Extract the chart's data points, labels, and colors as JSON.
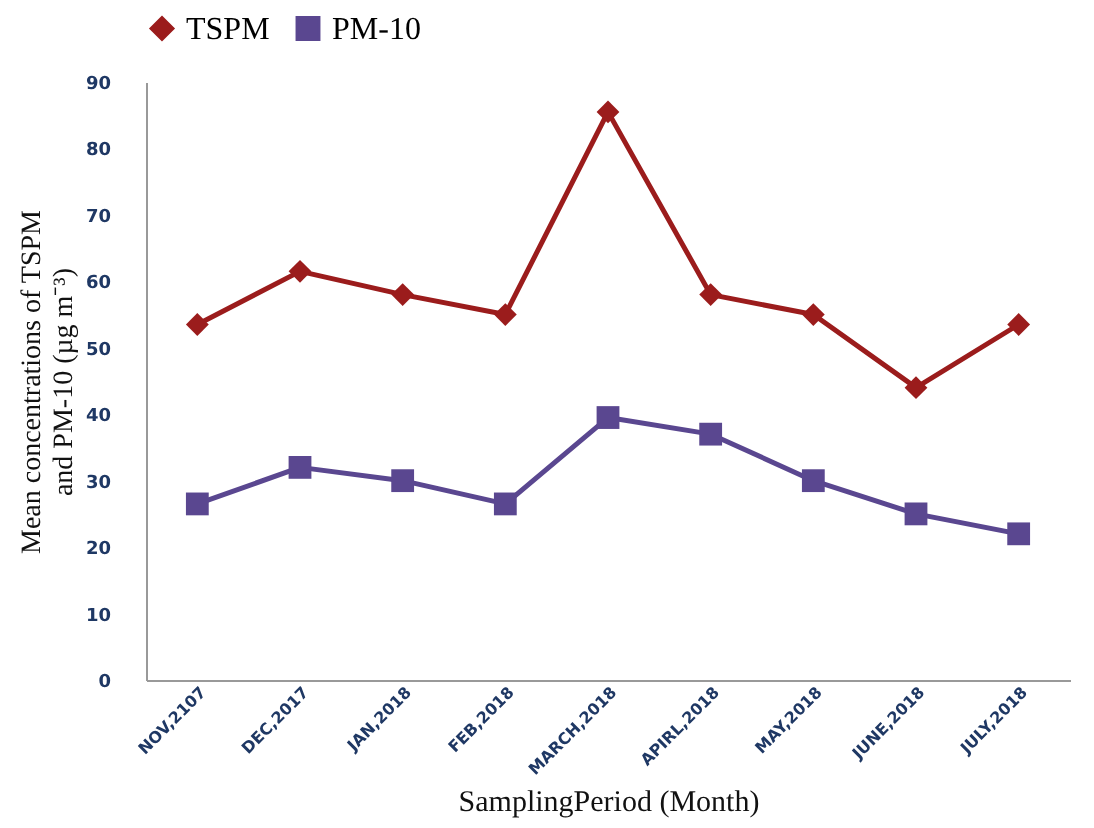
{
  "chart_data": {
    "type": "line",
    "xlabel": "SamplingPeriod (Month)",
    "ylabel": "Mean concentrations of TSPM and PM-10 (µg m⁻³)",
    "categories": [
      "NOV,2107",
      "DEC,2017",
      "JAN,2018",
      "FEB,2018",
      "MARCH,2018",
      "APIRL,2018",
      "MAY,2018",
      "JUNE,2018",
      "JULY,2018"
    ],
    "series": [
      {
        "name": "TSPM",
        "color": "#9b1c1c",
        "marker": "diamond",
        "values": [
          53.5,
          61.5,
          58,
          55,
          85.5,
          58,
          55,
          44,
          53.5
        ]
      },
      {
        "name": "PM-10",
        "color": "#5a4790",
        "marker": "square",
        "values": [
          26.5,
          32,
          30,
          26.5,
          39.5,
          37,
          30,
          25,
          22
        ]
      }
    ],
    "ylim": [
      0,
      90
    ],
    "yticks": [
      0,
      10,
      20,
      30,
      40,
      50,
      60,
      70,
      80,
      90
    ],
    "grid": false,
    "legend": "top",
    "line_style": "solid"
  }
}
